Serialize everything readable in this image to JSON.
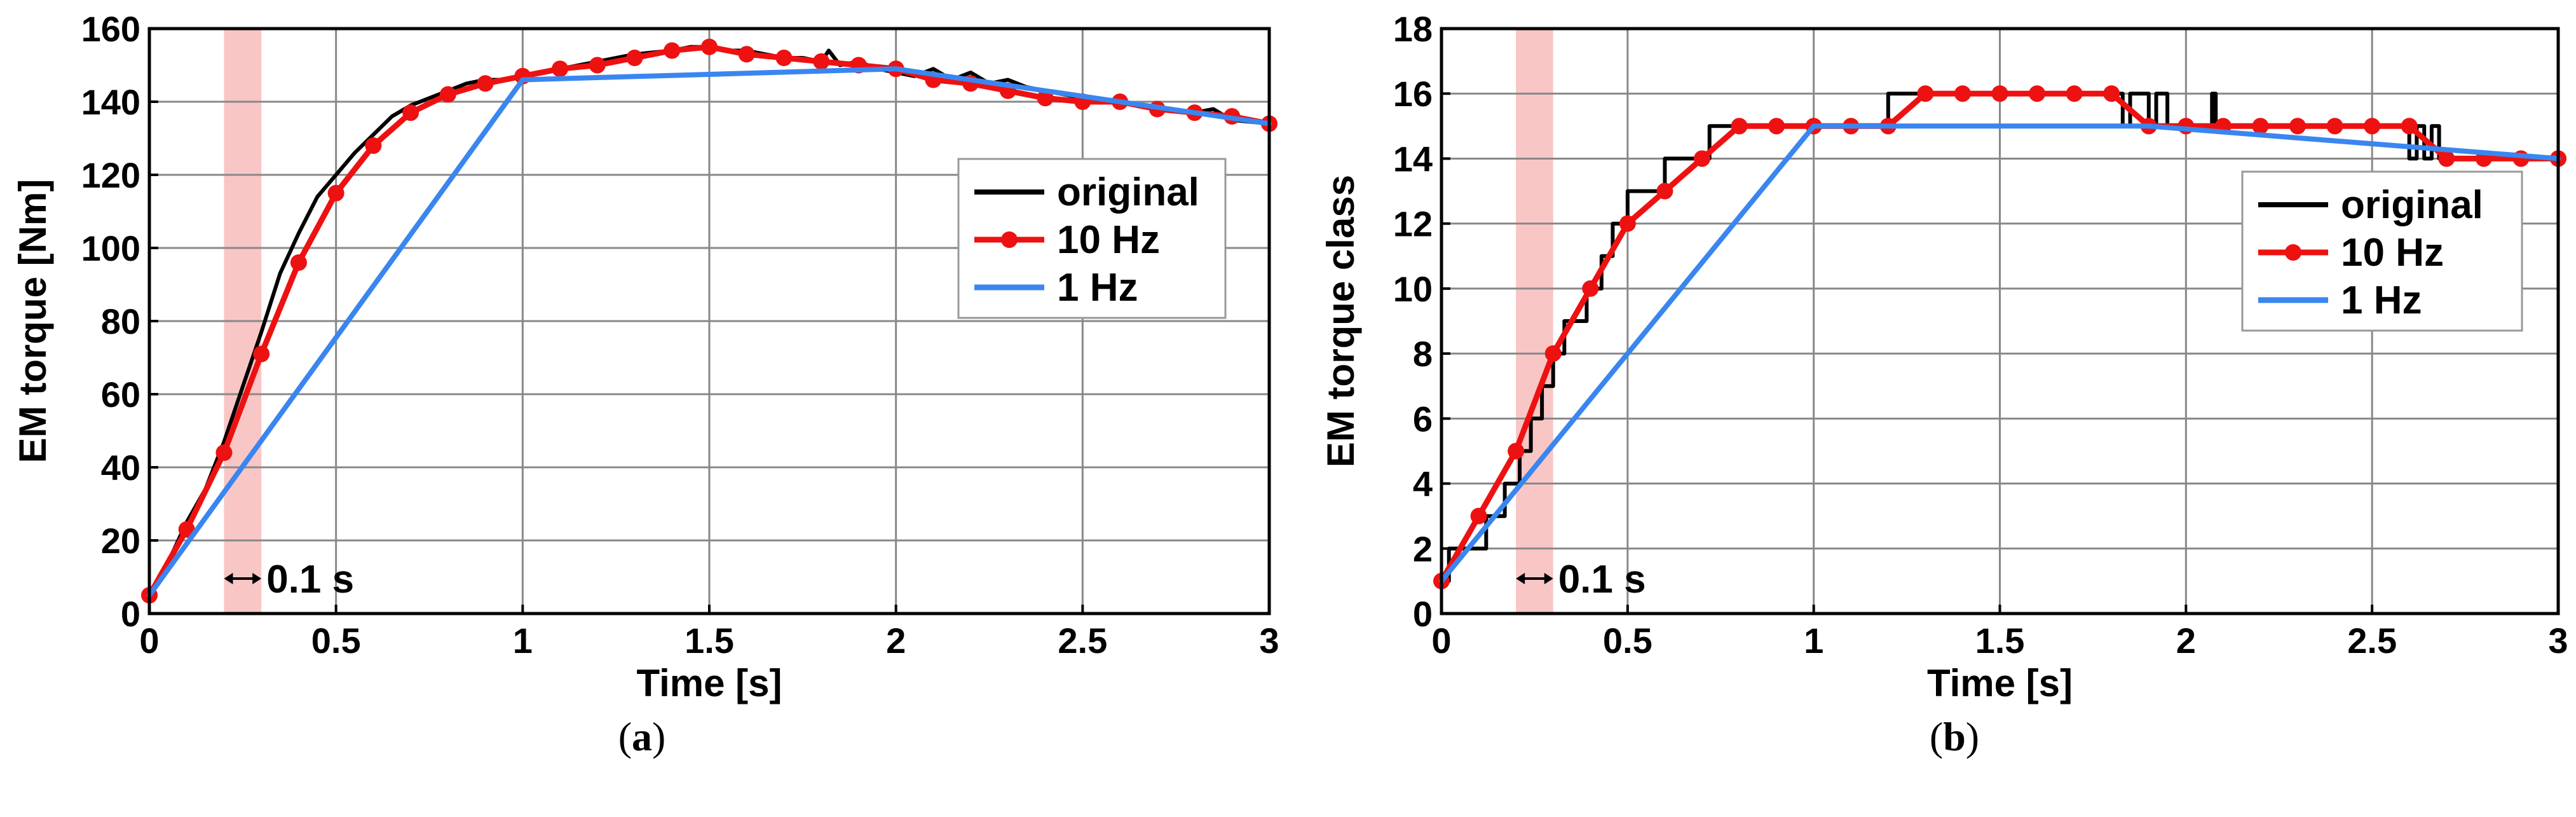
{
  "colors": {
    "original": "#000000",
    "ten_hz": "#ee1111",
    "one_hz": "#3a86f0",
    "highlight": "#f7b3b3",
    "grid": "#888888"
  },
  "chart_data": [
    {
      "type": "line",
      "panel": "a",
      "caption_letter": "a",
      "title": "",
      "xlabel": "Time [s]",
      "ylabel": "EM torque [Nm]",
      "xlim": [
        0,
        3
      ],
      "ylim": [
        0,
        160
      ],
      "xticks": [
        0,
        0.5,
        1,
        1.5,
        2,
        2.5,
        3
      ],
      "xtick_labels": [
        "0",
        "0.5",
        "1",
        "1.5",
        "2",
        "2.5",
        "3"
      ],
      "yticks": [
        0,
        20,
        40,
        60,
        80,
        100,
        120,
        140,
        160
      ],
      "ytick_labels": [
        "0",
        "20",
        "40",
        "60",
        "80",
        "100",
        "120",
        "140",
        "160"
      ],
      "grid": true,
      "legend_position": "right",
      "highlight_band": [
        0.2,
        0.3
      ],
      "annotation": "0.1 s",
      "series": [
        {
          "name": "original",
          "color": "#000000",
          "marker": false,
          "x": [
            0,
            0.05,
            0.1,
            0.15,
            0.2,
            0.25,
            0.3,
            0.35,
            0.4,
            0.45,
            0.5,
            0.55,
            0.6,
            0.65,
            0.7,
            0.75,
            0.8,
            0.85,
            0.9,
            0.95,
            1.0,
            1.1,
            1.2,
            1.3,
            1.4,
            1.45,
            1.5,
            1.55,
            1.6,
            1.65,
            1.7,
            1.75,
            1.8,
            1.82,
            1.85,
            1.9,
            1.95,
            2.0,
            2.05,
            2.1,
            2.15,
            2.2,
            2.25,
            2.3,
            2.35,
            2.4,
            2.5,
            2.6,
            2.7,
            2.8,
            2.85,
            2.9,
            3.0
          ],
          "y": [
            5,
            14,
            25,
            34,
            47,
            62,
            77,
            93,
            104,
            114,
            120,
            126,
            131,
            136,
            139,
            141,
            143,
            145,
            146,
            146,
            147,
            149,
            151,
            153,
            154,
            155,
            155,
            154,
            154,
            153,
            152,
            152,
            151,
            154,
            150,
            151,
            149,
            148,
            147,
            149,
            146,
            148,
            145,
            146,
            144,
            143,
            141,
            140,
            138,
            137,
            138,
            135,
            134
          ]
        },
        {
          "name": "10 Hz",
          "color": "#ee1111",
          "marker": true,
          "x": [
            0,
            0.1,
            0.2,
            0.3,
            0.4,
            0.5,
            0.6,
            0.7,
            0.8,
            0.9,
            1.0,
            1.1,
            1.2,
            1.3,
            1.4,
            1.5,
            1.6,
            1.7,
            1.8,
            1.9,
            2.0,
            2.1,
            2.2,
            2.3,
            2.4,
            2.5,
            2.6,
            2.7,
            2.8,
            2.9,
            3.0
          ],
          "y": [
            5,
            23,
            44,
            71,
            96,
            115,
            128,
            137,
            142,
            145,
            147,
            149,
            150,
            152,
            154,
            155,
            153,
            152,
            151,
            150,
            149,
            146,
            145,
            143,
            141,
            140,
            140,
            138,
            137,
            136,
            134
          ]
        },
        {
          "name": "1 Hz",
          "color": "#3a86f0",
          "marker": false,
          "x": [
            0,
            1,
            2,
            3
          ],
          "y": [
            5,
            146,
            149,
            134
          ]
        }
      ]
    },
    {
      "type": "line",
      "panel": "b",
      "caption_letter": "b",
      "title": "",
      "xlabel": "Time [s]",
      "ylabel": "EM torque class",
      "xlim": [
        0,
        3
      ],
      "ylim": [
        0,
        18
      ],
      "xticks": [
        0,
        0.5,
        1,
        1.5,
        2,
        2.5,
        3
      ],
      "xtick_labels": [
        "0",
        "0.5",
        "1",
        "1.5",
        "2",
        "2.5",
        "3"
      ],
      "yticks": [
        0,
        2,
        4,
        6,
        8,
        10,
        12,
        14,
        16,
        18
      ],
      "ytick_labels": [
        "0",
        "2",
        "4",
        "6",
        "8",
        "10",
        "12",
        "14",
        "16",
        "18"
      ],
      "grid": true,
      "legend_position": "right",
      "highlight_band": [
        0.2,
        0.3
      ],
      "annotation": "0.1 s",
      "series": [
        {
          "name": "original",
          "color": "#000000",
          "marker": false,
          "step": true,
          "x": [
            0,
            0.02,
            0.07,
            0.12,
            0.17,
            0.21,
            0.24,
            0.27,
            0.3,
            0.33,
            0.36,
            0.39,
            0.43,
            0.46,
            0.5,
            0.55,
            0.6,
            0.65,
            0.72,
            0.8,
            1.2,
            1.83,
            1.85,
            1.9,
            1.92,
            1.95,
            2.07,
            2.08,
            2.1,
            2.6,
            2.62,
            2.64,
            2.66,
            2.68,
            2.7,
            3.0
          ],
          "y": [
            1,
            2,
            2,
            3,
            4,
            5,
            6,
            7,
            8,
            9,
            9,
            10,
            11,
            12,
            13,
            13,
            14,
            14,
            15,
            15,
            16,
            15,
            16,
            15,
            16,
            15,
            16,
            15,
            15,
            14,
            15,
            14,
            15,
            14,
            14,
            14
          ]
        },
        {
          "name": "10 Hz",
          "color": "#ee1111",
          "marker": true,
          "x": [
            0,
            0.1,
            0.2,
            0.3,
            0.4,
            0.5,
            0.6,
            0.7,
            0.8,
            0.9,
            1.0,
            1.1,
            1.2,
            1.3,
            1.4,
            1.5,
            1.6,
            1.7,
            1.8,
            1.9,
            2.0,
            2.1,
            2.2,
            2.3,
            2.4,
            2.5,
            2.6,
            2.7,
            2.8,
            2.9,
            3.0
          ],
          "y": [
            1,
            3,
            5,
            8,
            10,
            12,
            13,
            14,
            15,
            15,
            15,
            15,
            15,
            16,
            16,
            16,
            16,
            16,
            16,
            15,
            15,
            15,
            15,
            15,
            15,
            15,
            15,
            14,
            14,
            14,
            14
          ]
        },
        {
          "name": "1 Hz",
          "color": "#3a86f0",
          "marker": false,
          "x": [
            0,
            1,
            1.9,
            3
          ],
          "y": [
            1,
            15,
            15,
            14
          ]
        }
      ]
    }
  ]
}
